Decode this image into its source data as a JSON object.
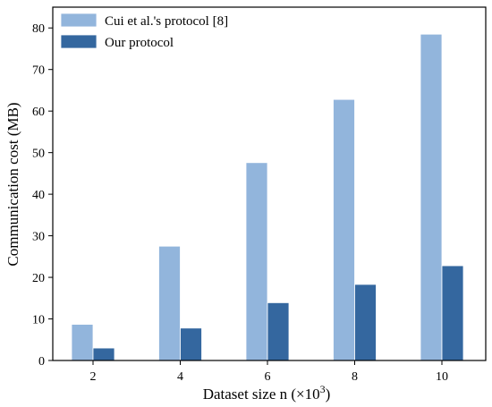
{
  "chart_data": {
    "type": "bar",
    "categories": [
      "2",
      "4",
      "6",
      "8",
      "10"
    ],
    "series": [
      {
        "name": "Cui et al.'s protocol [8]",
        "color": "#92b5dc",
        "values": [
          8.7,
          27.5,
          47.6,
          62.8,
          78.5
        ]
      },
      {
        "name": "Our protocol",
        "color": "#34679f",
        "values": [
          3.0,
          7.8,
          13.9,
          18.3,
          22.8
        ]
      }
    ],
    "xlabel": "Dataset size n (×10",
    "xlabel_exp": "3",
    "xlabel_close": ")",
    "ylabel": "Communication cost (MB)",
    "ylim": [
      0,
      85
    ],
    "yticks": [
      0,
      10,
      20,
      30,
      40,
      50,
      60,
      70,
      80
    ],
    "legend_position": "top-left",
    "grid": false
  }
}
